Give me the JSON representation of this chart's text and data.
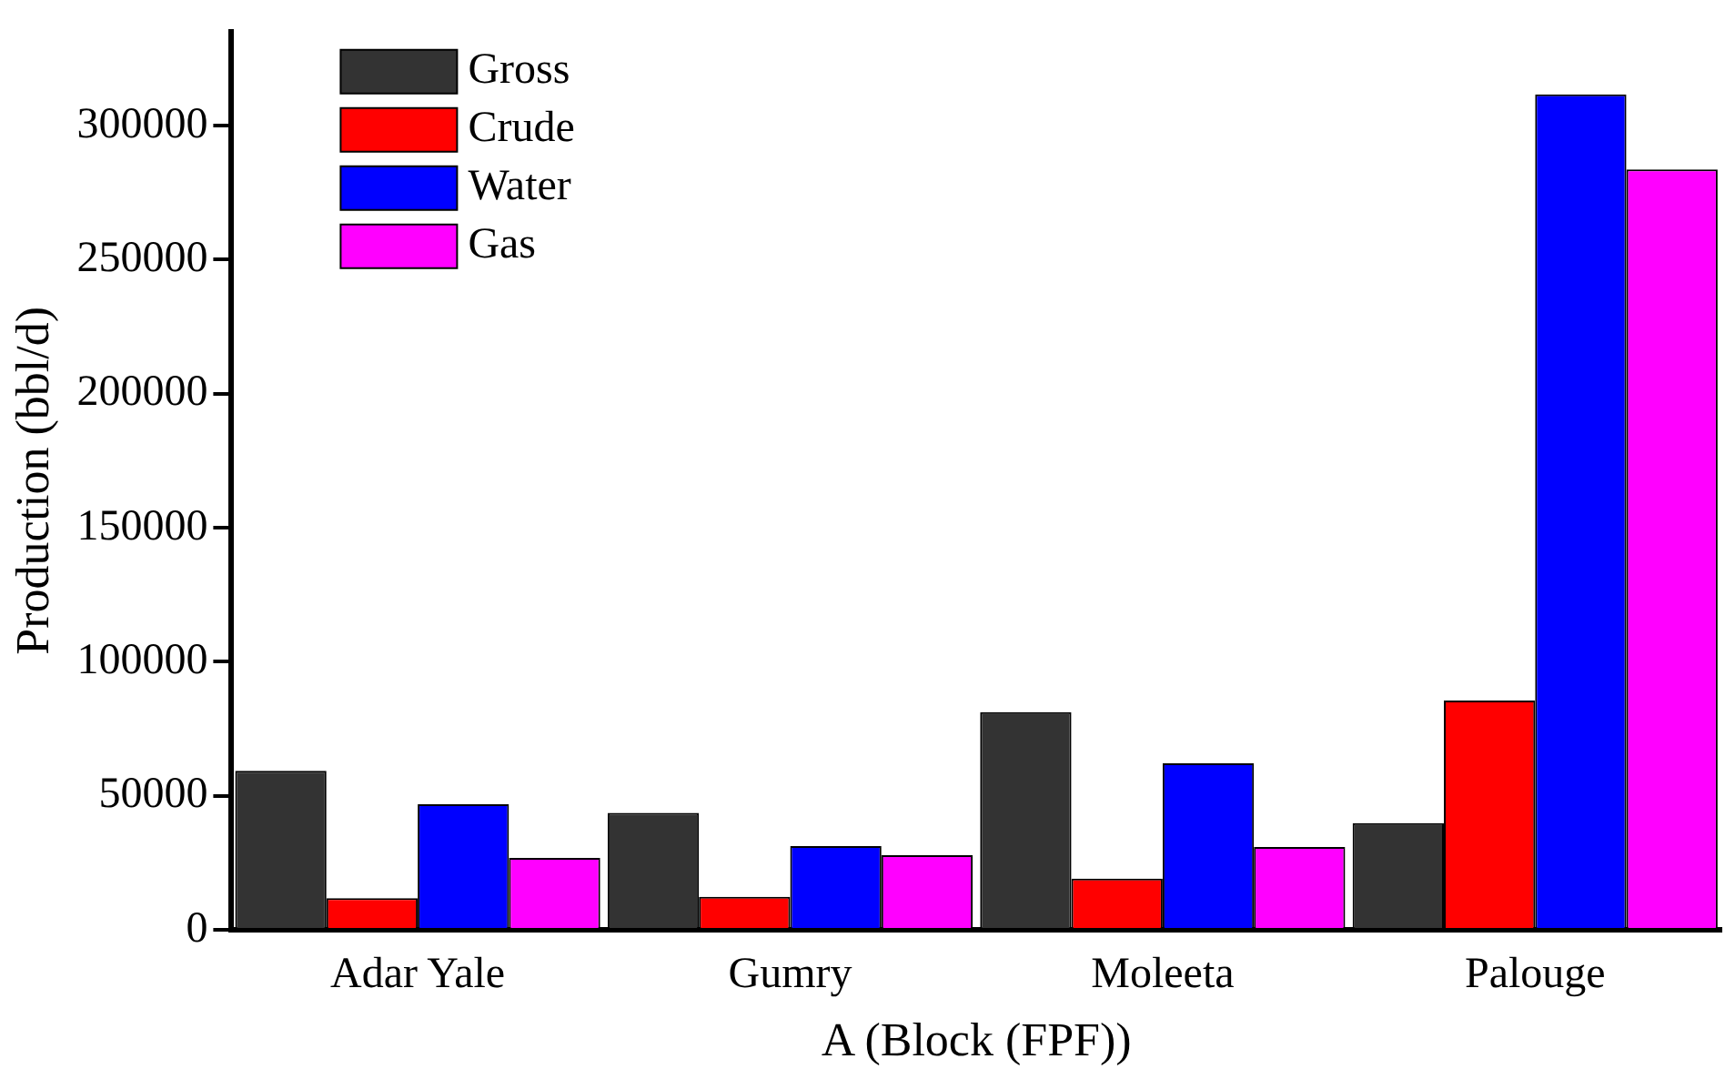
{
  "chart_data": {
    "type": "bar",
    "xlabel": "A (Block (FPF))",
    "ylabel": "Production (bbl/d)",
    "categories": [
      "Adar Yale",
      "Gumry",
      "Moleeta",
      "Palouge"
    ],
    "series": [
      {
        "name": "Gross",
        "color": "#333333",
        "values": [
          59300,
          43600,
          81200,
          39800
        ]
      },
      {
        "name": "Crude",
        "color": "#ff0000",
        "values": [
          11800,
          12300,
          19100,
          85500
        ]
      },
      {
        "name": "Water",
        "color": "#0000ff",
        "values": [
          46800,
          31200,
          62100,
          311600
        ]
      },
      {
        "name": "Gas",
        "color": "#ff00ff",
        "values": [
          26800,
          27800,
          30900,
          283600
        ]
      }
    ],
    "ylim": [
      0,
      335000
    ],
    "yticks": [
      0,
      50000,
      100000,
      150000,
      200000,
      250000,
      300000
    ],
    "grid": false,
    "legend": "top left"
  }
}
